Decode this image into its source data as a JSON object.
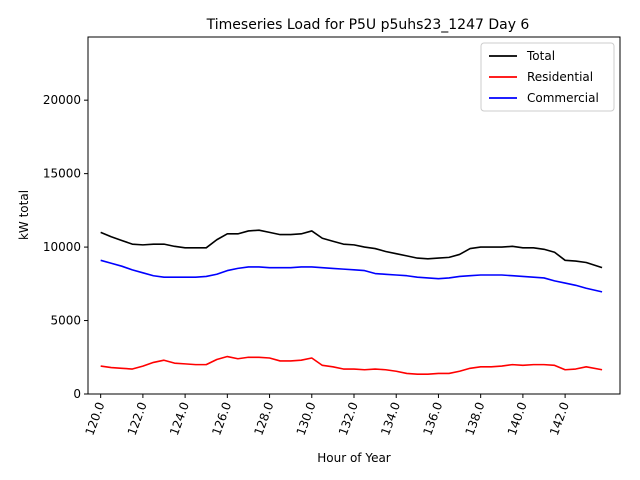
{
  "chart_data": {
    "type": "line",
    "title": "Timeseries Load for P5U p5uhs23_1247  Day 6",
    "xlabel": "Hour of Year",
    "ylabel": "kW total",
    "xlim": [
      119.4,
      144.6
    ],
    "ylim": [
      0,
      24300
    ],
    "x_ticks": [
      120.0,
      122.0,
      124.0,
      126.0,
      128.0,
      130.0,
      132.0,
      134.0,
      136.0,
      138.0,
      140.0,
      142.0
    ],
    "x_tick_labels": [
      "120.0",
      "122.0",
      "124.0",
      "126.0",
      "128.0",
      "130.0",
      "132.0",
      "134.0",
      "136.0",
      "138.0",
      "140.0",
      "142.0"
    ],
    "y_ticks": [
      0,
      5000,
      10000,
      15000,
      20000
    ],
    "y_tick_labels": [
      "0",
      "5000",
      "10000",
      "15000",
      "20000"
    ],
    "grid": false,
    "legend_position": "top-right",
    "x": [
      120,
      120.5,
      121,
      121.5,
      122,
      122.5,
      123,
      123.5,
      124,
      124.5,
      125,
      125.5,
      126,
      126.5,
      127,
      127.5,
      128,
      128.5,
      129,
      129.5,
      130,
      130.5,
      131,
      131.5,
      132,
      132.5,
      133,
      133.5,
      134,
      134.5,
      135,
      135.5,
      136,
      136.5,
      137,
      137.5,
      138,
      138.5,
      139,
      139.5,
      140,
      140.5,
      141,
      141.5,
      142,
      142.5,
      143,
      143.75
    ],
    "series": [
      {
        "name": "Total",
        "color": "#000000",
        "values": [
          11000,
          10700,
          10450,
          10200,
          10150,
          10200,
          10200,
          10050,
          9950,
          9950,
          9950,
          10500,
          10900,
          10900,
          11100,
          11150,
          11000,
          10850,
          10850,
          10900,
          11100,
          10600,
          10400,
          10200,
          10150,
          10000,
          9900,
          9700,
          9550,
          9400,
          9250,
          9200,
          9250,
          9300,
          9500,
          9900,
          10000,
          10000,
          10000,
          10050,
          9950,
          9950,
          9850,
          9650,
          9100,
          9050,
          8950,
          8600
        ]
      },
      {
        "name": "Residential",
        "color": "#ff0000",
        "values": [
          1900,
          1800,
          1750,
          1700,
          1900,
          2150,
          2300,
          2100,
          2050,
          2000,
          2000,
          2350,
          2550,
          2400,
          2500,
          2500,
          2450,
          2250,
          2250,
          2300,
          2450,
          1950,
          1850,
          1700,
          1700,
          1650,
          1700,
          1650,
          1550,
          1400,
          1350,
          1350,
          1400,
          1400,
          1550,
          1750,
          1850,
          1850,
          1900,
          2000,
          1950,
          2000,
          2000,
          1950,
          1650,
          1700,
          1850,
          1650
        ]
      },
      {
        "name": "Commercial",
        "color": "#0000ff",
        "values": [
          9100,
          8900,
          8700,
          8450,
          8250,
          8050,
          7950,
          7950,
          7950,
          7950,
          8000,
          8150,
          8400,
          8550,
          8650,
          8650,
          8600,
          8600,
          8600,
          8650,
          8650,
          8600,
          8550,
          8500,
          8450,
          8400,
          8200,
          8150,
          8100,
          8050,
          7950,
          7900,
          7850,
          7900,
          8000,
          8050,
          8100,
          8100,
          8100,
          8050,
          8000,
          7950,
          7900,
          7700,
          7550,
          7400,
          7200,
          6950
        ]
      }
    ]
  }
}
